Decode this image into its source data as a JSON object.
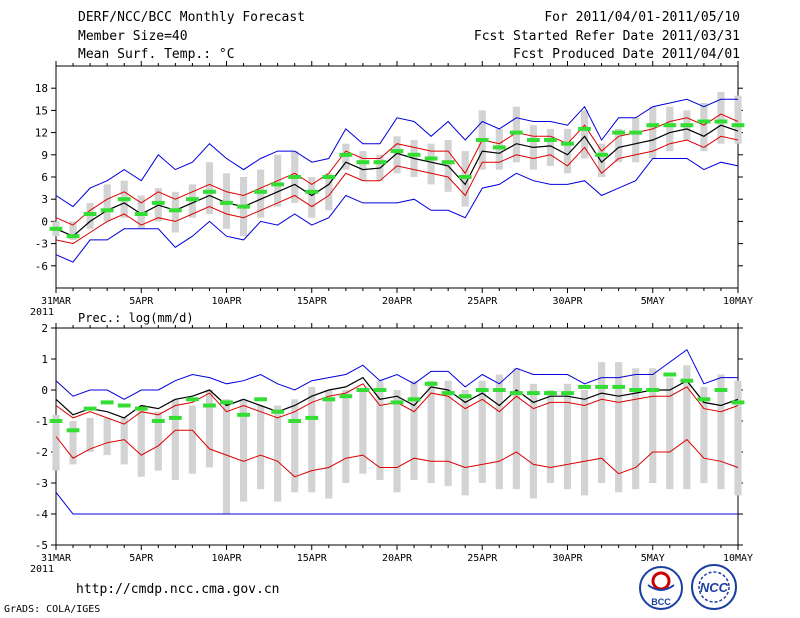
{
  "header": {
    "title": "DERF/NCC/BCC Monthly Forecast",
    "member_size": "Member Size=40",
    "forecast_period": "For 2011/04/01-2011/05/10",
    "started_refer": "Fcst Started Refer Date 2011/03/31",
    "produced": "Fcst Produced Date 2011/04/01"
  },
  "footer": {
    "url": "http://cmdp.ncc.cma.gov.cn",
    "credit": "GrADS: COLA/IGES",
    "logo_bcc": "BCC",
    "logo_ncc": "NCC"
  },
  "colors": {
    "mean": "#000000",
    "envelope": "#0000dd",
    "std_band": "#dd0000",
    "box": "#d3d3d3",
    "median": "#33dd33"
  },
  "chart_data": [
    {
      "type": "box-ensemble",
      "title": "Mean Surf. Temp.: °C",
      "x_start": "2011-03-31",
      "x_ticks": [
        "31MAR",
        "5APR",
        "10APR",
        "15APR",
        "20APR",
        "25APR",
        "30APR",
        "5MAY",
        "10MAY"
      ],
      "x_tick_days": [
        0,
        5,
        10,
        15,
        20,
        25,
        30,
        35,
        40
      ],
      "x_year_label": "2011",
      "ylim": [
        -9,
        21
      ],
      "y_ticks": [
        -6,
        -3,
        0,
        3,
        6,
        9,
        12,
        15,
        18
      ],
      "days": [
        0,
        1,
        2,
        3,
        4,
        5,
        6,
        7,
        8,
        9,
        10,
        11,
        12,
        13,
        14,
        15,
        16,
        17,
        18,
        19,
        20,
        21,
        22,
        23,
        24,
        25,
        26,
        27,
        28,
        29,
        30,
        31,
        32,
        33,
        34,
        35,
        36,
        37,
        38,
        39,
        40
      ],
      "mean": [
        -1.0,
        -2.0,
        0.0,
        1.5,
        2.5,
        1.0,
        2.2,
        1.5,
        2.5,
        3.5,
        2.5,
        2.0,
        3.0,
        4.0,
        5.0,
        3.5,
        5.0,
        8.0,
        7.0,
        7.2,
        9.2,
        8.5,
        8.0,
        7.5,
        5.0,
        9.5,
        9.2,
        10.5,
        10.0,
        10.2,
        9.0,
        11.5,
        8.0,
        10.0,
        10.5,
        11.0,
        12.0,
        12.5,
        11.5,
        13.0,
        12.2
      ],
      "max": [
        3.5,
        2.0,
        4.5,
        5.5,
        7.0,
        5.5,
        9.0,
        7.0,
        8.0,
        10.5,
        8.5,
        7.0,
        8.5,
        9.5,
        9.5,
        8.0,
        8.5,
        12.5,
        10.5,
        10.5,
        14.0,
        13.5,
        11.5,
        13.5,
        11.0,
        13.5,
        12.5,
        14.0,
        13.5,
        13.5,
        13.0,
        15.5,
        11.0,
        14.0,
        14.0,
        15.5,
        16.0,
        16.5,
        15.5,
        16.5,
        16.5
      ],
      "min": [
        -4.5,
        -5.5,
        -2.5,
        -2.5,
        -1.0,
        -1.0,
        -1.0,
        -3.5,
        -2.0,
        0.0,
        -2.0,
        -2.5,
        0.0,
        -0.5,
        1.0,
        -0.5,
        0.5,
        3.5,
        2.5,
        2.5,
        2.5,
        3.0,
        1.5,
        1.5,
        0.5,
        4.5,
        5.0,
        6.5,
        5.5,
        5.0,
        5.0,
        5.5,
        3.5,
        4.5,
        5.5,
        8.5,
        8.5,
        8.5,
        7.0,
        8.0,
        7.5
      ],
      "std_upper": [
        0.5,
        -0.5,
        1.5,
        3.0,
        4.0,
        2.5,
        4.0,
        3.0,
        4.0,
        5.0,
        4.0,
        3.5,
        4.5,
        5.5,
        6.5,
        5.0,
        6.5,
        9.5,
        8.5,
        8.5,
        10.5,
        10.0,
        9.5,
        9.5,
        6.5,
        11.0,
        10.5,
        12.0,
        11.5,
        11.5,
        10.5,
        13.0,
        9.5,
        11.5,
        12.0,
        12.5,
        13.5,
        14.0,
        13.0,
        14.5,
        13.5
      ],
      "std_lower": [
        -2.5,
        -3.0,
        -1.5,
        0.0,
        1.0,
        -0.5,
        0.5,
        0.0,
        1.0,
        2.0,
        1.0,
        0.5,
        1.5,
        2.5,
        3.5,
        2.0,
        3.5,
        6.5,
        5.5,
        5.5,
        7.5,
        7.0,
        6.5,
        6.0,
        3.5,
        8.0,
        8.0,
        9.0,
        8.5,
        9.0,
        7.5,
        10.0,
        6.5,
        8.5,
        9.0,
        9.5,
        10.5,
        11.0,
        10.0,
        11.5,
        11.0
      ],
      "box_top": [
        0.0,
        0.0,
        2.5,
        5.0,
        5.5,
        3.5,
        4.5,
        4.0,
        5.0,
        8.0,
        6.5,
        6.0,
        7.0,
        9.0,
        9.5,
        6.0,
        6.5,
        10.5,
        9.5,
        9.0,
        11.5,
        11.0,
        10.5,
        11.0,
        9.5,
        15.0,
        12.5,
        15.5,
        13.0,
        12.5,
        12.5,
        15.0,
        10.5,
        12.5,
        14.0,
        15.5,
        15.5,
        15.0,
        16.0,
        17.5,
        17.0
      ],
      "box_bottom": [
        -2.0,
        -2.5,
        -1.0,
        0.0,
        0.5,
        -1.0,
        0.0,
        -1.5,
        0.5,
        1.0,
        -1.0,
        -2.0,
        0.5,
        2.0,
        2.5,
        0.5,
        1.5,
        7.0,
        5.5,
        5.5,
        6.5,
        6.0,
        5.0,
        4.0,
        2.0,
        7.0,
        7.0,
        8.0,
        7.0,
        7.5,
        6.5,
        8.5,
        6.0,
        8.0,
        8.0,
        8.5,
        9.5,
        11.0,
        9.5,
        10.5,
        10.5
      ],
      "median": [
        -1.0,
        -2.0,
        1.0,
        1.5,
        3.0,
        1.0,
        2.5,
        1.5,
        3.0,
        4.0,
        2.5,
        2.0,
        4.0,
        5.0,
        6.0,
        4.0,
        6.0,
        9.0,
        8.0,
        8.0,
        9.5,
        9.0,
        8.5,
        8.0,
        6.0,
        11.0,
        10.0,
        12.0,
        11.0,
        11.0,
        10.5,
        12.5,
        9.0,
        12.0,
        12.0,
        13.0,
        13.0,
        13.0,
        13.5,
        13.5,
        13.0
      ]
    },
    {
      "type": "box-ensemble",
      "title": "Prec.: log(mm/d)",
      "x_start": "2011-03-31",
      "x_ticks": [
        "31MAR",
        "5APR",
        "10APR",
        "15APR",
        "20APR",
        "25APR",
        "30APR",
        "5MAY",
        "10MAY"
      ],
      "x_tick_days": [
        0,
        5,
        10,
        15,
        20,
        25,
        30,
        35,
        40
      ],
      "x_year_label": "2011",
      "ylim": [
        -5,
        2
      ],
      "y_ticks": [
        -5,
        -4,
        -3,
        -2,
        -1,
        0,
        1,
        2
      ],
      "days": [
        0,
        1,
        2,
        3,
        4,
        5,
        6,
        7,
        8,
        9,
        10,
        11,
        12,
        13,
        14,
        15,
        16,
        17,
        18,
        19,
        20,
        21,
        22,
        23,
        24,
        25,
        26,
        27,
        28,
        29,
        30,
        31,
        32,
        33,
        34,
        35,
        36,
        37,
        38,
        39,
        40
      ],
      "mean": [
        -0.3,
        -0.8,
        -0.6,
        -0.7,
        -0.9,
        -0.5,
        -0.6,
        -0.3,
        -0.2,
        0.0,
        -0.5,
        -0.3,
        -0.5,
        -0.7,
        -0.5,
        -0.2,
        0.0,
        0.1,
        0.4,
        -0.3,
        -0.2,
        -0.5,
        0.1,
        0.0,
        -0.4,
        -0.1,
        -0.5,
        0.0,
        -0.4,
        -0.2,
        -0.2,
        -0.3,
        -0.1,
        -0.2,
        -0.1,
        0.0,
        0.0,
        0.3,
        -0.4,
        -0.5,
        -0.3
      ],
      "max": [
        0.3,
        -0.2,
        0.0,
        0.0,
        -0.3,
        0.0,
        0.0,
        0.3,
        0.5,
        0.4,
        0.2,
        0.3,
        0.5,
        0.2,
        0.0,
        0.3,
        0.4,
        0.5,
        0.8,
        0.3,
        0.5,
        0.2,
        0.6,
        0.6,
        0.1,
        0.5,
        0.2,
        0.7,
        0.5,
        0.5,
        0.5,
        0.2,
        0.4,
        0.4,
        0.5,
        0.5,
        0.9,
        1.3,
        0.2,
        0.4,
        0.4
      ],
      "min": [
        -3.3,
        -4.0,
        -4.0,
        -4.0,
        -4.0,
        -4.0,
        -4.0,
        -4.0,
        -4.0,
        -4.0,
        -4.0,
        -4.0,
        -4.0,
        -4.0,
        -4.0,
        -4.0,
        -4.0,
        -4.0,
        -4.0,
        -4.0,
        -4.0,
        -4.0,
        -4.0,
        -4.0,
        -4.0,
        -4.0,
        -4.0,
        -4.0,
        -4.0,
        -4.0,
        -4.0,
        -4.0,
        -4.0,
        -4.0,
        -4.0,
        -4.0,
        -4.0,
        -4.0,
        -4.0,
        -4.0,
        -4.0
      ],
      "std_upper": [
        -0.5,
        -0.9,
        -0.7,
        -0.9,
        -1.1,
        -0.7,
        -0.8,
        -0.5,
        -0.4,
        -0.1,
        -0.7,
        -0.5,
        -0.7,
        -0.9,
        -0.7,
        -0.4,
        -0.2,
        -0.1,
        0.2,
        -0.5,
        -0.4,
        -0.7,
        -0.1,
        -0.2,
        -0.6,
        -0.3,
        -0.7,
        -0.2,
        -0.6,
        -0.4,
        -0.4,
        -0.5,
        -0.3,
        -0.4,
        -0.3,
        -0.2,
        -0.2,
        0.1,
        -0.6,
        -0.7,
        -0.5
      ],
      "std_lower": [
        -1.5,
        -2.2,
        -1.9,
        -1.7,
        -1.6,
        -2.1,
        -1.8,
        -1.3,
        -1.3,
        -1.9,
        -2.1,
        -2.3,
        -2.1,
        -2.3,
        -2.8,
        -2.6,
        -2.5,
        -2.2,
        -2.1,
        -2.5,
        -2.5,
        -2.2,
        -2.3,
        -2.3,
        -2.5,
        -2.4,
        -2.3,
        -2.0,
        -2.4,
        -2.5,
        -2.4,
        -2.3,
        -2.2,
        -2.7,
        -2.5,
        -2.0,
        -2.0,
        -1.6,
        -2.2,
        -2.3,
        -2.5
      ],
      "box_top": [
        -0.8,
        -1.0,
        -0.9,
        -0.9,
        -0.9,
        -0.5,
        -0.7,
        -0.3,
        -0.5,
        0.0,
        -0.3,
        -0.3,
        -0.5,
        -0.5,
        -0.3,
        0.1,
        0.0,
        0.0,
        0.0,
        0.3,
        0.0,
        0.3,
        0.3,
        0.3,
        0.0,
        0.3,
        0.5,
        0.7,
        0.2,
        0.0,
        0.2,
        0.0,
        0.9,
        0.9,
        0.7,
        0.7,
        0.4,
        0.8,
        0.1,
        0.5,
        0.3
      ],
      "box_bottom": [
        -2.6,
        -2.4,
        -2.0,
        -2.1,
        -2.4,
        -2.8,
        -2.6,
        -2.9,
        -2.7,
        -2.5,
        -4.0,
        -3.6,
        -3.2,
        -3.6,
        -3.3,
        -3.3,
        -3.5,
        -3.0,
        -2.7,
        -2.9,
        -3.3,
        -2.9,
        -3.0,
        -3.1,
        -3.4,
        -3.0,
        -3.2,
        -3.2,
        -3.5,
        -3.0,
        -3.2,
        -3.4,
        -3.0,
        -3.3,
        -3.2,
        -3.0,
        -3.2,
        -3.2,
        -3.0,
        -3.2,
        -3.4
      ],
      "median": [
        -1.0,
        -1.3,
        -0.6,
        -0.4,
        -0.5,
        -0.6,
        -1.0,
        -0.9,
        -0.3,
        -0.5,
        -0.4,
        -0.8,
        -0.3,
        -0.7,
        -1.0,
        -0.9,
        -0.3,
        -0.2,
        0.0,
        0.0,
        -0.4,
        -0.3,
        0.2,
        -0.1,
        -0.2,
        0.0,
        0.0,
        -0.1,
        -0.1,
        -0.1,
        -0.1,
        0.1,
        0.1,
        0.1,
        0.0,
        0.0,
        0.5,
        0.3,
        -0.3,
        0.0,
        -0.4
      ]
    }
  ]
}
